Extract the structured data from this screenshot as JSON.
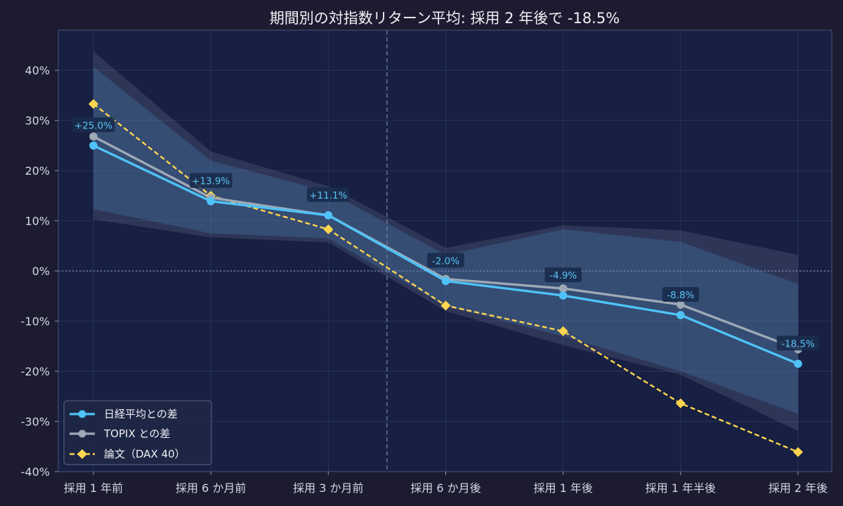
{
  "chart_data": {
    "type": "line",
    "title": "期間別の対指数リターン平均: 採用 2 年後で -18.5%",
    "xlabel": "",
    "ylabel": "",
    "categories": [
      "採用 1 年前",
      "採用 6 か月前",
      "採用 3 か月前",
      "採用 6 か月後",
      "採用 1 年後",
      "採用 1 年半後",
      "採用 2 年後"
    ],
    "ylim": [
      -40,
      48
    ],
    "yticks": [
      -40,
      -30,
      -20,
      -10,
      0,
      10,
      20,
      30,
      40
    ],
    "ytick_labels": [
      "-40%",
      "-30%",
      "-20%",
      "-10%",
      "0%",
      "10%",
      "20%",
      "30%",
      "40%"
    ],
    "grid": true,
    "reference_lines": {
      "y_zero": true,
      "x_event_between": [
        2,
        3
      ]
    },
    "legend_position": "bottom-left",
    "series": [
      {
        "name": "日経平均との差",
        "color": "#4fc3f7",
        "style": "solid",
        "marker": "circle",
        "values": [
          25.0,
          13.9,
          11.1,
          -2.0,
          -4.9,
          -8.8,
          -18.5
        ],
        "data_labels": [
          "+25.0%",
          "+13.9%",
          "+11.1%",
          "-2.0%",
          "-4.9%",
          "-8.8%",
          "-18.5%"
        ],
        "band_lower": [
          12.3,
          7.5,
          6.5,
          -7.0,
          -13.0,
          -20.0,
          -28.5
        ],
        "band_upper": [
          40.7,
          22.0,
          15.8,
          3.2,
          8.3,
          5.8,
          -2.6
        ]
      },
      {
        "name": "TOPIX との差",
        "color": "#9ea9b6",
        "style": "solid",
        "marker": "circle",
        "values": [
          26.8,
          14.6,
          11.1,
          -1.6,
          -3.5,
          -6.7,
          -15.6
        ],
        "band_lower": [
          10.3,
          6.7,
          5.7,
          -8.0,
          -14.8,
          -20.7,
          -31.9
        ],
        "band_upper": [
          43.8,
          23.8,
          16.9,
          4.6,
          9.1,
          8.1,
          3.2
        ]
      },
      {
        "name": "論文（DAX 40）",
        "color": "#ffd54f",
        "style": "dashed",
        "marker": "diamond",
        "values": [
          33.3,
          15.0,
          8.3,
          -6.9,
          -12.0,
          -26.4,
          -36.1
        ]
      }
    ]
  }
}
